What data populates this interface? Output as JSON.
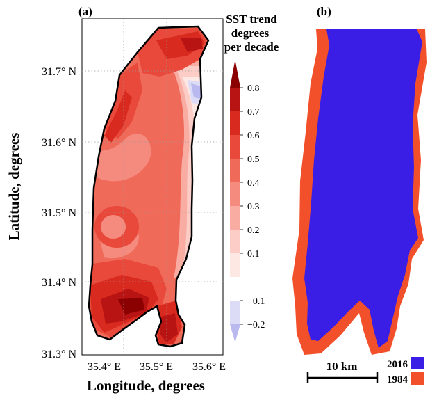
{
  "panels": {
    "a": {
      "label": "(a)",
      "colorbar": {
        "title_lines": [
          "SST trend",
          "degrees",
          "per decade"
        ],
        "ticks": [
          "0.8",
          "0.7",
          "0.6",
          "0.5",
          "0.4",
          "0.3",
          "0.2",
          "0.1",
          "−0.1",
          "−0.2"
        ],
        "tick_values": [
          0.8,
          0.7,
          0.6,
          0.5,
          0.4,
          0.3,
          0.2,
          0.1,
          -0.1,
          -0.2
        ],
        "colors": [
          "#8b0000",
          "#b81414",
          "#d82a1e",
          "#e8493a",
          "#f06a5a",
          "#f58b7e",
          "#f8aca2",
          "#fbcdc6",
          "#fde8e4",
          "#ffffff",
          "#dcdcf6",
          "#b9b9f0"
        ]
      },
      "y_ticks": [
        "31.7° N",
        "31.6° N",
        "31.5° N",
        "31.4° N",
        "31.3° N"
      ],
      "x_ticks": [
        "35.4° E",
        "35.5° E",
        "35.6° E"
      ],
      "y_label": "Latitude,  degrees",
      "x_label": "Longitude, degrees"
    },
    "b": {
      "label": "(b)",
      "scale_bar": "10 km",
      "legend": [
        {
          "label": "2016",
          "color": "#3a1ee6"
        },
        {
          "label": "1984",
          "color": "#f2502a"
        }
      ]
    }
  },
  "colors": {
    "border": "#000000",
    "grid": "#9a9a9a"
  }
}
